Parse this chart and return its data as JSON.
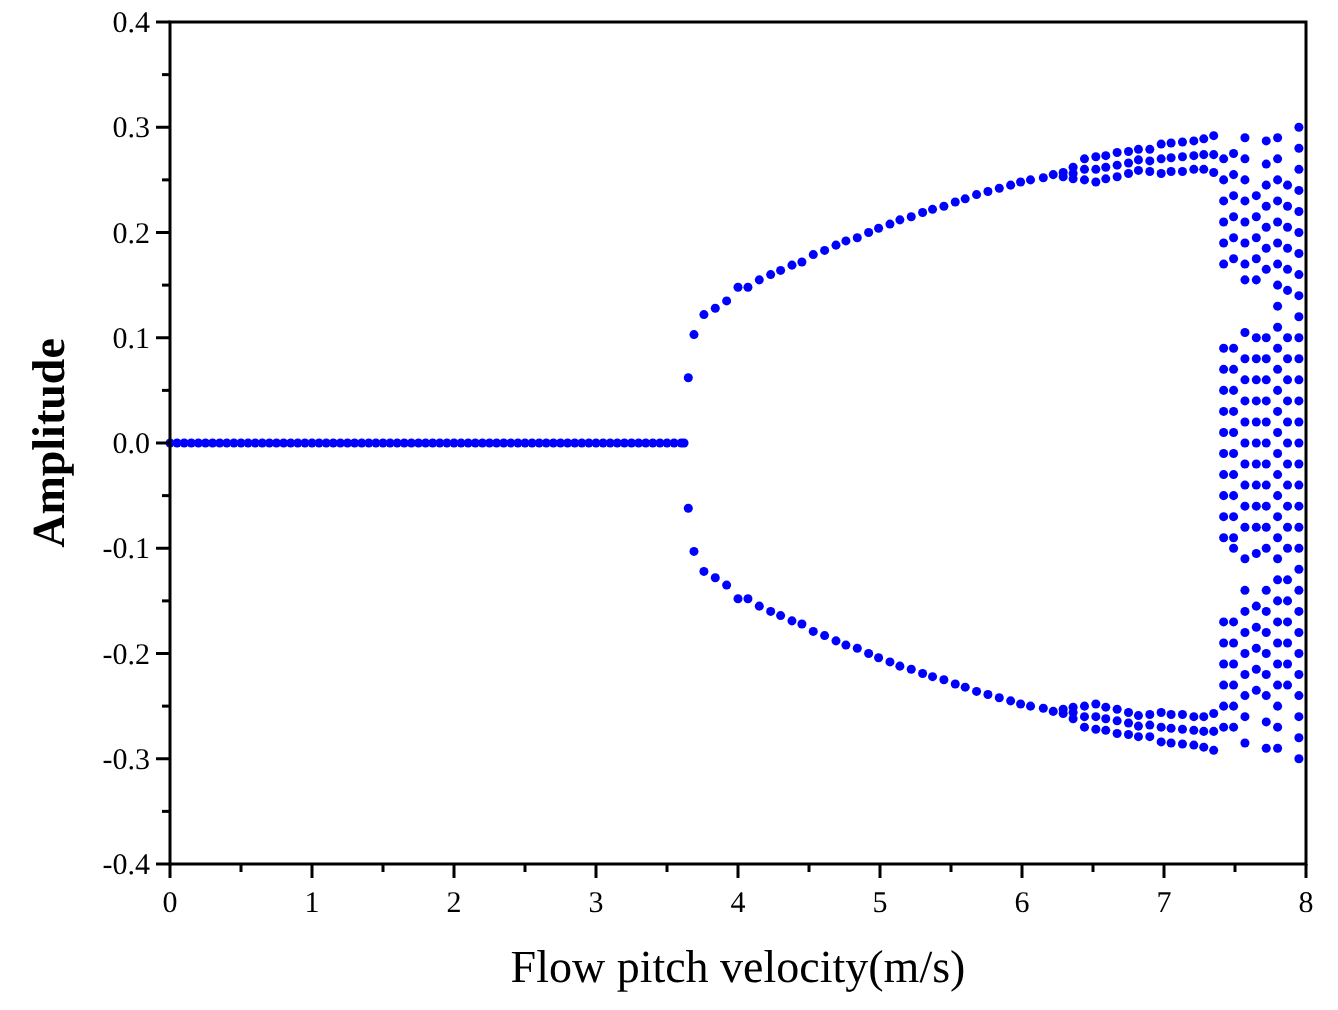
{
  "chart_data": {
    "type": "scatter",
    "xlabel": "Flow pitch velocity(m/s)",
    "ylabel": "Amplitude",
    "xlim": [
      0,
      8
    ],
    "ylim": [
      -0.4,
      0.4
    ],
    "xticks": [
      0,
      {
        "value": 0.5,
        "label": null
      },
      1,
      {
        "value": 1.5,
        "label": null
      },
      2,
      {
        "value": 2.5,
        "label": null
      },
      3,
      {
        "value": 3.5,
        "label": null
      },
      4,
      {
        "value": 4.5,
        "label": null
      },
      5,
      {
        "value": 5.5,
        "label": null
      },
      6,
      {
        "value": 6.5,
        "label": null
      },
      7,
      {
        "value": 7.5,
        "label": null
      },
      8
    ],
    "yticks": [
      -0.4,
      {
        "value": -0.35,
        "label": null
      },
      -0.3,
      {
        "value": -0.25,
        "label": null
      },
      -0.2,
      {
        "value": -0.15,
        "label": null
      },
      -0.1,
      {
        "value": -0.05,
        "label": null
      },
      {
        "value": 0,
        "label": "0.0"
      },
      {
        "value": 0.05,
        "label": null
      },
      0.1,
      {
        "value": 0.15,
        "label": null
      },
      0.2,
      {
        "value": 0.25,
        "label": null
      },
      0.3,
      {
        "value": 0.35,
        "label": null
      },
      0.4
    ],
    "grid": false,
    "marker": "circle",
    "series": [
      {
        "color": "#0000ff",
        "x": [
          0,
          0.05,
          0.1,
          0.15,
          0.2,
          0.25,
          0.3,
          0.35,
          0.4,
          0.45,
          0.5,
          0.55,
          0.6,
          0.65,
          0.7,
          0.75,
          0.8,
          0.85,
          0.9,
          0.95,
          1,
          1.05,
          1.1,
          1.15,
          1.2,
          1.25,
          1.3,
          1.35,
          1.4,
          1.45,
          1.5,
          1.55,
          1.6,
          1.65,
          1.7,
          1.75,
          1.8,
          1.85,
          1.9,
          1.95,
          2,
          2.05,
          2.1,
          2.15,
          2.2,
          2.25,
          2.3,
          2.35,
          2.4,
          2.45,
          2.5,
          2.55,
          2.6,
          2.65,
          2.7,
          2.75,
          2.8,
          2.85,
          2.9,
          2.95,
          3,
          3.05,
          3.1,
          3.15,
          3.2,
          3.25,
          3.3,
          3.35,
          3.4,
          3.45,
          3.5,
          3.55,
          3.6,
          3.62
        ],
        "values": [
          0,
          0,
          0,
          0,
          0,
          0,
          0,
          0,
          0,
          0,
          0,
          0,
          0,
          0,
          0,
          0,
          0,
          0,
          0,
          0,
          0,
          0,
          0,
          0,
          0,
          0,
          0,
          0,
          0,
          0,
          0,
          0,
          0,
          0,
          0,
          0,
          0,
          0,
          0,
          0,
          0,
          0,
          0,
          0,
          0,
          0,
          0,
          0,
          0,
          0,
          0,
          0,
          0,
          0,
          0,
          0,
          0,
          0,
          0,
          0,
          0,
          0,
          0,
          0,
          0,
          0,
          0,
          0,
          0,
          0,
          0,
          0,
          0,
          0
        ]
      },
      {
        "color": "#0000ff",
        "x": [
          3.65,
          3.69,
          3.76,
          3.84,
          3.92,
          4.0,
          4.07,
          4.15,
          4.23,
          4.3,
          4.38,
          4.45,
          4.53,
          4.61,
          4.69,
          4.76,
          4.84,
          4.92,
          4.99,
          5.07,
          5.14,
          5.22,
          5.3,
          5.37,
          5.45,
          5.53,
          5.6,
          5.68,
          5.76,
          5.84,
          5.92,
          5.99,
          6.06,
          6.15,
          6.22,
          6.29,
          6.29,
          6.36,
          6.36,
          6.36,
          6.44,
          6.44,
          6.44,
          6.52,
          6.52,
          6.52,
          6.59,
          6.59,
          6.59,
          6.67,
          6.67,
          6.67,
          6.75,
          6.75,
          6.75,
          6.82,
          6.82,
          6.82,
          6.9,
          6.9,
          6.9,
          6.98,
          6.98,
          6.98,
          7.05,
          7.05,
          7.05,
          7.13,
          7.13,
          7.13,
          7.21,
          7.21,
          7.21,
          7.28,
          7.28,
          7.28,
          7.35,
          7.35,
          7.35
        ],
        "values": [
          0.062,
          0.103,
          0.122,
          0.128,
          0.135,
          0.148,
          0.148,
          0.155,
          0.16,
          0.164,
          0.169,
          0.172,
          0.179,
          0.183,
          0.188,
          0.192,
          0.195,
          0.2,
          0.204,
          0.208,
          0.212,
          0.215,
          0.219,
          0.222,
          0.225,
          0.229,
          0.232,
          0.236,
          0.239,
          0.242,
          0.245,
          0.248,
          0.25,
          0.252,
          0.255,
          0.253,
          0.257,
          0.251,
          0.256,
          0.262,
          0.25,
          0.26,
          0.27,
          0.248,
          0.26,
          0.272,
          0.251,
          0.262,
          0.273,
          0.253,
          0.264,
          0.276,
          0.256,
          0.266,
          0.277,
          0.259,
          0.269,
          0.279,
          0.258,
          0.268,
          0.279,
          0.256,
          0.27,
          0.284,
          0.258,
          0.271,
          0.285,
          0.258,
          0.272,
          0.286,
          0.26,
          0.273,
          0.287,
          0.26,
          0.274,
          0.289,
          0.257,
          0.274,
          0.292
        ]
      },
      {
        "color": "#0000ff",
        "x": [
          3.65,
          3.69,
          3.76,
          3.84,
          3.92,
          4.0,
          4.07,
          4.15,
          4.23,
          4.3,
          4.38,
          4.45,
          4.53,
          4.61,
          4.69,
          4.76,
          4.84,
          4.92,
          4.99,
          5.07,
          5.14,
          5.22,
          5.3,
          5.37,
          5.45,
          5.53,
          5.6,
          5.68,
          5.76,
          5.84,
          5.92,
          5.99,
          6.06,
          6.15,
          6.22,
          6.29,
          6.29,
          6.36,
          6.36,
          6.36,
          6.44,
          6.44,
          6.44,
          6.52,
          6.52,
          6.52,
          6.59,
          6.59,
          6.59,
          6.67,
          6.67,
          6.67,
          6.75,
          6.75,
          6.75,
          6.82,
          6.82,
          6.82,
          6.9,
          6.9,
          6.9,
          6.98,
          6.98,
          6.98,
          7.05,
          7.05,
          7.05,
          7.13,
          7.13,
          7.13,
          7.21,
          7.21,
          7.21,
          7.28,
          7.28,
          7.28,
          7.35,
          7.35,
          7.35
        ],
        "values": [
          -0.062,
          -0.103,
          -0.122,
          -0.128,
          -0.135,
          -0.148,
          -0.148,
          -0.155,
          -0.16,
          -0.164,
          -0.169,
          -0.172,
          -0.179,
          -0.183,
          -0.188,
          -0.192,
          -0.195,
          -0.2,
          -0.204,
          -0.208,
          -0.212,
          -0.215,
          -0.219,
          -0.222,
          -0.225,
          -0.229,
          -0.232,
          -0.236,
          -0.239,
          -0.242,
          -0.245,
          -0.248,
          -0.25,
          -0.252,
          -0.255,
          -0.253,
          -0.257,
          -0.251,
          -0.256,
          -0.262,
          -0.25,
          -0.26,
          -0.27,
          -0.248,
          -0.26,
          -0.272,
          -0.251,
          -0.262,
          -0.273,
          -0.253,
          -0.264,
          -0.276,
          -0.256,
          -0.266,
          -0.277,
          -0.259,
          -0.269,
          -0.279,
          -0.258,
          -0.268,
          -0.279,
          -0.256,
          -0.27,
          -0.284,
          -0.258,
          -0.271,
          -0.285,
          -0.258,
          -0.272,
          -0.286,
          -0.26,
          -0.273,
          -0.287,
          -0.26,
          -0.274,
          -0.289,
          -0.257,
          -0.274,
          -0.292
        ]
      },
      {
        "color": "#0000ff",
        "x": [
          7.42,
          7.42,
          7.42,
          7.42,
          7.42,
          7.42,
          7.42,
          7.42,
          7.42,
          7.42,
          7.42,
          7.42,
          7.42,
          7.42,
          7.42,
          7.42,
          7.42,
          7.42,
          7.42,
          7.42,
          7.42,
          7.42,
          7.49,
          7.49,
          7.49,
          7.49,
          7.49,
          7.49,
          7.49,
          7.49,
          7.49,
          7.49,
          7.49,
          7.49,
          7.49,
          7.49,
          7.49,
          7.49,
          7.49,
          7.49,
          7.49,
          7.49,
          7.49,
          7.49,
          7.49
        ],
        "values": [
          0.27,
          0.25,
          0.23,
          0.21,
          0.19,
          0.17,
          0.09,
          0.07,
          0.05,
          0.03,
          0.01,
          -0.01,
          -0.03,
          -0.05,
          -0.07,
          -0.09,
          -0.17,
          -0.19,
          -0.21,
          -0.23,
          -0.25,
          -0.27,
          0.275,
          0.255,
          0.235,
          0.215,
          0.195,
          0.175,
          0.09,
          0.07,
          0.05,
          0.03,
          0.01,
          -0.01,
          -0.03,
          -0.05,
          -0.07,
          -0.09,
          -0.1,
          -0.17,
          -0.19,
          -0.21,
          -0.23,
          -0.25,
          -0.27
        ]
      },
      {
        "color": "#0000ff",
        "x": [
          7.57,
          7.57,
          7.57,
          7.57,
          7.57,
          7.57,
          7.57,
          7.57,
          7.57,
          7.57,
          7.57,
          7.57,
          7.57,
          7.57,
          7.57,
          7.57,
          7.57,
          7.57,
          7.57,
          7.57,
          7.57,
          7.57,
          7.57,
          7.57,
          7.57,
          7.57,
          7.57,
          7.65,
          7.65,
          7.65,
          7.65,
          7.65,
          7.65,
          7.65,
          7.65,
          7.65,
          7.65,
          7.65,
          7.65,
          7.65,
          7.65,
          7.65,
          7.65,
          7.65,
          7.65,
          7.65,
          7.65,
          7.65
        ],
        "values": [
          0.29,
          0.27,
          0.25,
          0.23,
          0.21,
          0.19,
          0.17,
          0.155,
          0.105,
          0.08,
          0.06,
          0.04,
          0.02,
          0,
          -0.02,
          -0.04,
          -0.06,
          -0.08,
          -0.11,
          -0.14,
          -0.16,
          -0.18,
          -0.2,
          -0.22,
          -0.24,
          -0.26,
          -0.285,
          0.235,
          0.215,
          0.195,
          0.175,
          0.155,
          0.1,
          0.08,
          0.06,
          0.04,
          0.02,
          0,
          -0.02,
          -0.04,
          -0.06,
          -0.08,
          -0.105,
          -0.155,
          -0.175,
          -0.195,
          -0.215,
          -0.235
        ]
      },
      {
        "color": "#0000ff",
        "x": [
          7.72,
          7.72,
          7.72,
          7.72,
          7.72,
          7.72,
          7.72,
          7.72,
          7.72,
          7.72,
          7.72,
          7.72,
          7.72,
          7.72,
          7.72,
          7.72,
          7.72,
          7.72,
          7.72,
          7.72,
          7.72,
          7.72,
          7.72,
          7.72,
          7.72,
          7.72
        ],
        "values": [
          0.287,
          0.265,
          0.245,
          0.225,
          0.205,
          0.185,
          0.165,
          0.1,
          0.08,
          0.06,
          0.04,
          0.02,
          0,
          -0.02,
          -0.04,
          -0.06,
          -0.08,
          -0.1,
          -0.14,
          -0.16,
          -0.18,
          -0.2,
          -0.22,
          -0.24,
          -0.265,
          -0.29
        ]
      },
      {
        "color": "#0000ff",
        "x": [
          7.8,
          7.8,
          7.8,
          7.8,
          7.8,
          7.8,
          7.8,
          7.8,
          7.8,
          7.8,
          7.8,
          7.8,
          7.8,
          7.8,
          7.8,
          7.8,
          7.8,
          7.8,
          7.8,
          7.8,
          7.8,
          7.8,
          7.8,
          7.8,
          7.8,
          7.8,
          7.8,
          7.8,
          7.8,
          7.8
        ],
        "values": [
          0.29,
          0.27,
          0.25,
          0.23,
          0.21,
          0.19,
          0.17,
          0.15,
          0.13,
          0.11,
          0.09,
          0.07,
          0.05,
          0.03,
          0.01,
          -0.01,
          -0.03,
          -0.05,
          -0.07,
          -0.09,
          -0.11,
          -0.13,
          -0.15,
          -0.17,
          -0.19,
          -0.21,
          -0.23,
          -0.25,
          -0.27,
          -0.29
        ]
      },
      {
        "color": "#0000ff",
        "x": [
          7.87,
          7.87,
          7.87,
          7.87,
          7.87,
          7.87,
          7.87,
          7.87,
          7.87,
          7.87,
          7.87,
          7.87,
          7.87,
          7.87,
          7.87,
          7.87,
          7.87,
          7.87,
          7.87,
          7.87,
          7.87,
          7.87,
          7.87
        ],
        "values": [
          0.245,
          0.225,
          0.205,
          0.185,
          0.165,
          0.145,
          0.1,
          0.08,
          0.06,
          0.04,
          0.02,
          0,
          -0.02,
          -0.04,
          -0.06,
          -0.08,
          -0.1,
          -0.13,
          -0.15,
          -0.17,
          -0.19,
          -0.21,
          -0.23
        ]
      },
      {
        "color": "#0000ff",
        "x": [
          7.95,
          7.95,
          7.95,
          7.95,
          7.95,
          7.95,
          7.95,
          7.95,
          7.95,
          7.95,
          7.95,
          7.95,
          7.95,
          7.95,
          7.95,
          7.95,
          7.95,
          7.95,
          7.95,
          7.95,
          7.95,
          7.95,
          7.95,
          7.95,
          7.95,
          7.95,
          7.95,
          7.95,
          7.95,
          7.95,
          7.95
        ],
        "values": [
          0.3,
          0.28,
          0.26,
          0.24,
          0.22,
          0.2,
          0.18,
          0.16,
          0.14,
          0.12,
          0.1,
          0.08,
          0.06,
          0.04,
          0.02,
          0,
          -0.02,
          -0.04,
          -0.06,
          -0.08,
          -0.1,
          -0.12,
          -0.14,
          -0.16,
          -0.18,
          -0.2,
          -0.22,
          -0.24,
          -0.26,
          -0.28,
          -0.3
        ]
      }
    ]
  }
}
